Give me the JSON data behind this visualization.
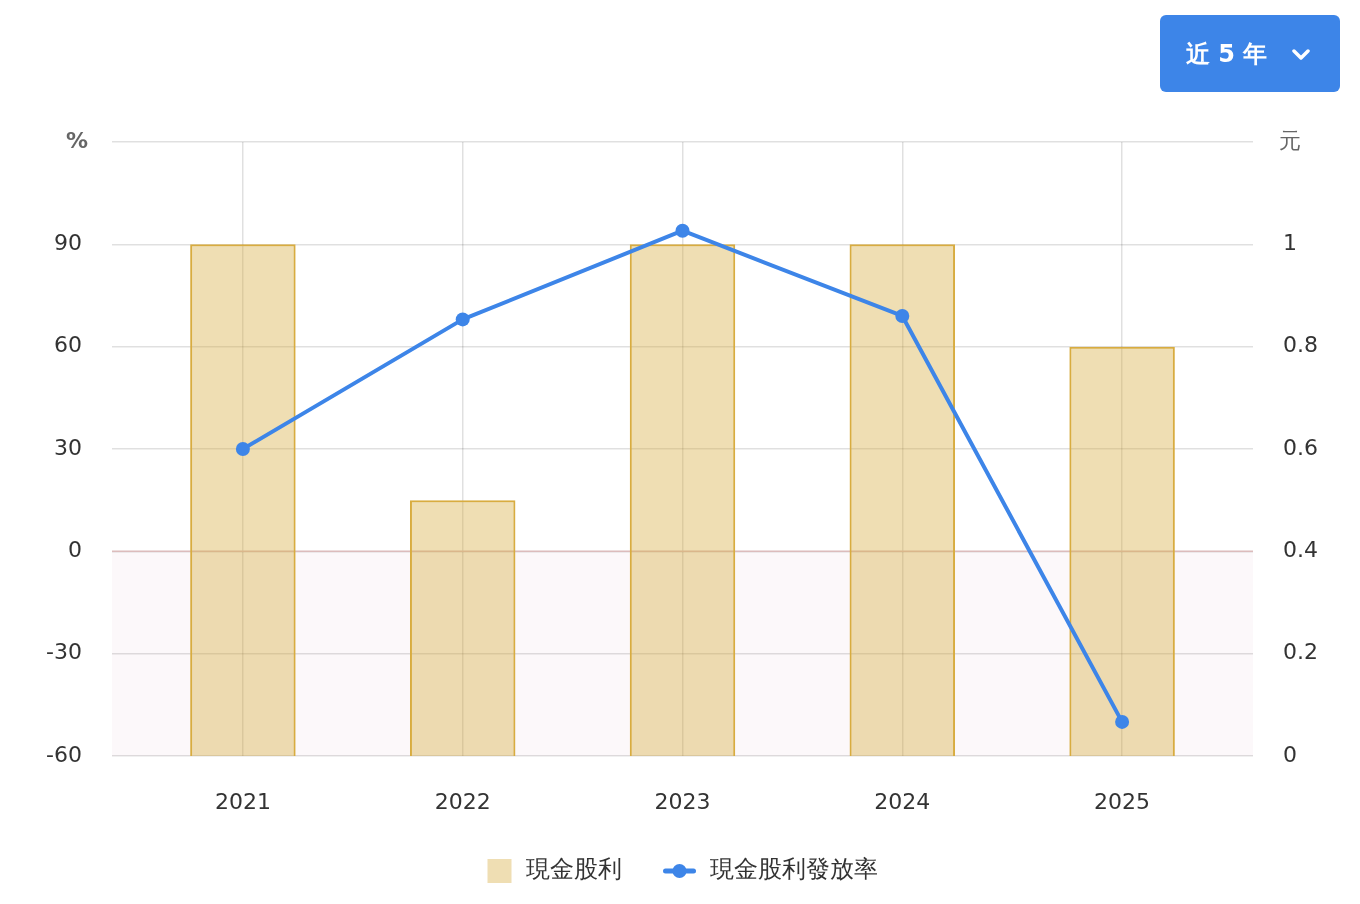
{
  "chart_data": {
    "type": "bar",
    "categories": [
      "2021",
      "2022",
      "2023",
      "2024",
      "2025"
    ],
    "series": [
      {
        "name": "現金股利",
        "axis": "y2",
        "color": "#d8ac40",
        "values": [
          1,
          0.5,
          1,
          1,
          0.8
        ]
      },
      {
        "name": "現金股利發放率",
        "type": "line",
        "axis": "y",
        "color": "#3d85e8",
        "values": [
          30,
          68,
          94,
          69,
          -50
        ]
      }
    ],
    "ylabel": "%",
    "y2label": "元",
    "ylim": [
      -60,
      120
    ],
    "yticks": [
      -60,
      -30,
      0,
      30,
      60,
      90,
      {
        "value": 120,
        "label": null
      }
    ],
    "y2lim": [
      0,
      1.2
    ],
    "y2ticks": [
      0,
      0.2,
      0.4,
      0.6,
      0.8,
      1
    ],
    "grid": true,
    "legend": "bottom",
    "marker": "circle",
    "bands": [
      {
        "axis": "y",
        "from": -60,
        "to": 0,
        "color": "#fcf8fa"
      }
    ],
    "ref_lines": [
      {
        "axis": "y",
        "value": 0,
        "color": "#dcbcbc"
      }
    ],
    "annotations": [
      "近 5 年"
    ]
  }
}
